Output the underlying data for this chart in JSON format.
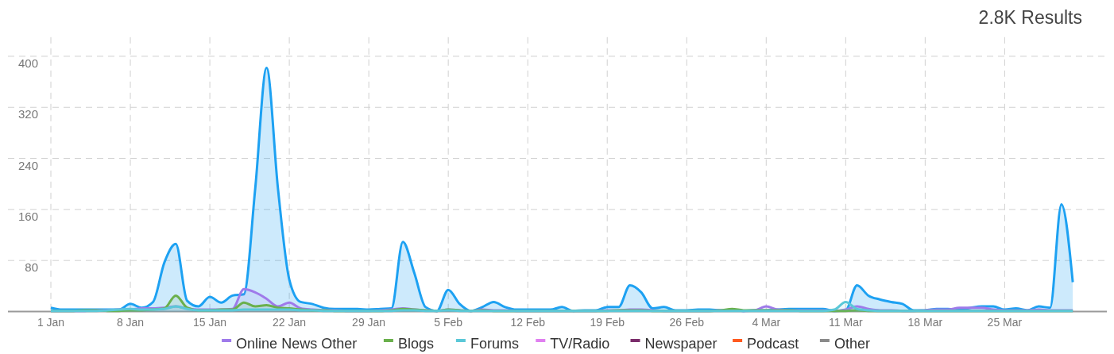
{
  "chart_data": {
    "type": "area",
    "title": "2.8K Results",
    "x": [
      "--01-01",
      "--01-02",
      "--01-03",
      "--01-04",
      "--01-05",
      "--01-06",
      "--01-07",
      "--01-08",
      "--01-09",
      "--01-10",
      "--01-11",
      "--01-12",
      "--01-13",
      "--01-14",
      "--01-15",
      "--01-16",
      "--01-17",
      "--01-18",
      "--01-19",
      "--01-20",
      "--01-21",
      "--01-22",
      "--01-23",
      "--01-24",
      "--01-25",
      "--01-26",
      "--01-27",
      "--01-28",
      "--01-29",
      "--01-30",
      "--01-31",
      "--02-01",
      "--02-02",
      "--02-03",
      "--02-04",
      "--02-05",
      "--02-06",
      "--02-07",
      "--02-08",
      "--02-09",
      "--02-10",
      "--02-11",
      "--02-12",
      "--02-13",
      "--02-14",
      "--02-15",
      "--02-16",
      "--02-17",
      "--02-18",
      "--02-19",
      "--02-20",
      "--02-21",
      "--02-22",
      "--02-23",
      "--02-24",
      "--02-25",
      "--02-26",
      "--02-27",
      "--02-28",
      "--02-29",
      "--03-01",
      "--03-02",
      "--03-03",
      "--03-04",
      "--03-05",
      "--03-06",
      "--03-07",
      "--03-08",
      "--03-09",
      "--03-10",
      "--03-11",
      "--03-12",
      "--03-13",
      "--03-14",
      "--03-15",
      "--03-16",
      "--03-17",
      "--03-18",
      "--03-19",
      "--03-20",
      "--03-21",
      "--03-22",
      "--03-23",
      "--03-24",
      "--03-25",
      "--03-26",
      "--03-27",
      "--03-28",
      "--03-29",
      "--03-30",
      "--03-31"
    ],
    "series": [
      {
        "color": "#1da1f2",
        "values": [
          6,
          3,
          3,
          3,
          3,
          3,
          3,
          12,
          6,
          15,
          77,
          106,
          17,
          8,
          23,
          14,
          25,
          27,
          193,
          382,
          193,
          50,
          15,
          12,
          6,
          4,
          4,
          4,
          3,
          4,
          5,
          109,
          61,
          7,
          1,
          34,
          12,
          1,
          7,
          15,
          7,
          3,
          3,
          3,
          3,
          7,
          1,
          2,
          2,
          7,
          7,
          41,
          30,
          5,
          7,
          2,
          2,
          3,
          3,
          2,
          2,
          1,
          2,
          2,
          3,
          4,
          4,
          4,
          4,
          1,
          2,
          41,
          25,
          19,
          15,
          12,
          2,
          2,
          4,
          4,
          3,
          6,
          8,
          8,
          3,
          5,
          2,
          8,
          6,
          168,
          46
        ]
      },
      {
        "name": "Online News Other",
        "color": "#9f7aea",
        "values": [
          1,
          1,
          1,
          1,
          2,
          2,
          3,
          3,
          5,
          5,
          6,
          8,
          5,
          3,
          3,
          3,
          4,
          35,
          30,
          20,
          8,
          14,
          5,
          3,
          2,
          2,
          1,
          1,
          1,
          2,
          3,
          5,
          3,
          2,
          1,
          3,
          2,
          1,
          3,
          2,
          2,
          1,
          1,
          1,
          1,
          1,
          1,
          1,
          1,
          2,
          2,
          3,
          3,
          2,
          1,
          1,
          1,
          1,
          1,
          2,
          2,
          1,
          2,
          8,
          3,
          2,
          2,
          2,
          2,
          1,
          3,
          8,
          4,
          2,
          2,
          1,
          1,
          2,
          3,
          3,
          6,
          6,
          6,
          3,
          2,
          2,
          2,
          3,
          2,
          2,
          2
        ]
      },
      {
        "name": "Blogs",
        "color": "#6ab04c",
        "values": [
          1,
          1,
          1,
          2,
          2,
          1,
          1,
          2,
          2,
          3,
          5,
          25,
          6,
          2,
          2,
          3,
          3,
          14,
          8,
          10,
          6,
          5,
          3,
          2,
          2,
          1,
          1,
          1,
          1,
          1,
          2,
          4,
          3,
          2,
          1,
          3,
          2,
          1,
          2,
          1,
          1,
          1,
          1,
          1,
          1,
          1,
          1,
          1,
          1,
          1,
          2,
          2,
          2,
          1,
          1,
          1,
          1,
          1,
          1,
          2,
          4,
          2,
          2,
          2,
          2,
          2,
          1,
          1,
          1,
          1,
          1,
          2,
          1,
          1,
          1,
          1,
          1,
          1,
          1,
          1,
          1,
          1,
          1,
          1,
          1,
          1,
          1,
          1,
          1,
          1,
          1
        ]
      },
      {
        "name": "Forums",
        "color": "#5bc8d8",
        "values": [
          1,
          1,
          1,
          1,
          1,
          2,
          3,
          4,
          3,
          3,
          4,
          8,
          4,
          2,
          2,
          2,
          2,
          3,
          3,
          3,
          3,
          3,
          2,
          2,
          1,
          1,
          1,
          1,
          1,
          1,
          1,
          2,
          2,
          1,
          1,
          2,
          1,
          1,
          1,
          1,
          1,
          1,
          1,
          1,
          1,
          1,
          1,
          1,
          1,
          1,
          1,
          1,
          1,
          1,
          1,
          1,
          1,
          1,
          1,
          1,
          1,
          1,
          1,
          1,
          1,
          1,
          1,
          1,
          1,
          3,
          15,
          4,
          2,
          1,
          1,
          1,
          1,
          1,
          1,
          1,
          1,
          1,
          1,
          1,
          1,
          1,
          1,
          1,
          1,
          1,
          1
        ]
      },
      {
        "color": "#3b5998",
        "values": [
          null,
          null,
          null,
          null,
          null,
          null,
          null,
          null,
          null,
          null,
          null,
          null,
          null,
          null,
          null,
          null,
          null,
          null,
          null,
          null,
          null,
          null,
          null,
          null,
          null,
          null,
          null,
          null,
          null,
          null,
          null,
          null,
          null,
          null,
          null,
          null,
          null,
          null,
          null,
          null,
          null,
          null,
          null,
          null,
          null,
          null,
          null,
          null,
          null,
          null,
          null,
          null,
          null,
          null,
          null,
          null,
          null,
          null,
          null,
          null,
          null,
          null,
          null,
          null,
          null,
          null,
          null,
          null,
          null,
          null,
          null,
          null,
          null,
          null,
          null,
          null,
          null,
          null,
          null,
          null,
          null,
          null,
          null,
          null,
          null,
          null,
          null,
          null,
          null,
          null,
          null
        ]
      },
      {
        "color": "#ff0000",
        "values": [
          null,
          null,
          null,
          null,
          null,
          null,
          null,
          null,
          null,
          null,
          null,
          null,
          null,
          null,
          null,
          null,
          null,
          null,
          null,
          null,
          null,
          null,
          null,
          null,
          null,
          null,
          null,
          null,
          null,
          null,
          null,
          null,
          null,
          null,
          null,
          null,
          null,
          null,
          null,
          null,
          null,
          null,
          null,
          null,
          null,
          null,
          null,
          null,
          null,
          null,
          null,
          null,
          null,
          null,
          null,
          null,
          null,
          null,
          null,
          null,
          null,
          null,
          null,
          null,
          null,
          null,
          null,
          null,
          null,
          null,
          null,
          null,
          null,
          null,
          null,
          null,
          null,
          null,
          null,
          null,
          null,
          null,
          null,
          null,
          null,
          null,
          null,
          null,
          null,
          null,
          null
        ]
      },
      {
        "name": "TV/Radio",
        "color": "#e080f0",
        "values": [
          null,
          null,
          null,
          null,
          null,
          null,
          null,
          null,
          null,
          null,
          null,
          null,
          null,
          null,
          null,
          null,
          null,
          null,
          null,
          null,
          null,
          null,
          null,
          null,
          null,
          null,
          null,
          null,
          null,
          null,
          null,
          null,
          null,
          null,
          null,
          null,
          null,
          null,
          null,
          null,
          null,
          null,
          null,
          null,
          null,
          null,
          null,
          null,
          null,
          null,
          null,
          null,
          null,
          null,
          null,
          null,
          null,
          null,
          null,
          null,
          null,
          null,
          null,
          null,
          null,
          null,
          null,
          null,
          null,
          null,
          null,
          null,
          null,
          null,
          null,
          null,
          null,
          null,
          null,
          null,
          null,
          null,
          null,
          null,
          null,
          null,
          null,
          null,
          null,
          null,
          null
        ]
      },
      {
        "name": "Newspaper",
        "color": "#7b2d6b",
        "values": [
          null,
          null,
          null,
          null,
          null,
          null,
          null,
          null,
          null,
          null,
          null,
          null,
          null,
          null,
          null,
          null,
          null,
          null,
          null,
          null,
          null,
          null,
          null,
          null,
          null,
          null,
          null,
          null,
          null,
          null,
          null,
          null,
          null,
          null,
          null,
          null,
          null,
          null,
          null,
          null,
          null,
          null,
          null,
          null,
          null,
          null,
          null,
          null,
          null,
          null,
          null,
          null,
          null,
          null,
          null,
          null,
          null,
          null,
          null,
          null,
          null,
          null,
          null,
          null,
          null,
          null,
          null,
          null,
          null,
          null,
          null,
          null,
          null,
          null,
          null,
          null,
          null,
          null,
          null,
          null,
          null,
          null,
          null,
          null,
          null,
          null,
          null,
          null,
          null,
          null,
          null
        ]
      },
      {
        "name": "Podcast",
        "color": "#ff5a1f",
        "values": [
          null,
          null,
          null,
          null,
          null,
          null,
          null,
          null,
          null,
          null,
          null,
          null,
          null,
          null,
          null,
          null,
          null,
          null,
          null,
          null,
          null,
          null,
          null,
          null,
          null,
          null,
          null,
          null,
          null,
          null,
          null,
          null,
          null,
          null,
          null,
          null,
          null,
          null,
          null,
          null,
          null,
          null,
          null,
          null,
          null,
          null,
          null,
          null,
          null,
          null,
          null,
          null,
          null,
          null,
          null,
          null,
          null,
          null,
          null,
          null,
          null,
          null,
          null,
          null,
          null,
          null,
          null,
          null,
          null,
          null,
          null,
          null,
          null,
          null,
          null,
          null,
          null,
          null,
          null,
          null,
          null,
          null,
          null,
          null,
          null,
          null,
          null,
          null,
          null,
          null,
          null
        ]
      },
      {
        "name": "Other",
        "color": "#8a8a8a",
        "values": [
          null,
          null,
          null,
          null,
          null,
          null,
          null,
          null,
          null,
          null,
          null,
          null,
          null,
          null,
          null,
          null,
          null,
          null,
          null,
          null,
          null,
          null,
          null,
          null,
          null,
          null,
          null,
          null,
          null,
          null,
          null,
          null,
          null,
          null,
          null,
          null,
          null,
          null,
          null,
          null,
          null,
          null,
          null,
          null,
          null,
          null,
          null,
          null,
          null,
          null,
          null,
          null,
          null,
          null,
          null,
          null,
          null,
          null,
          null,
          null,
          null,
          null,
          null,
          null,
          null,
          null,
          null,
          null,
          null,
          null,
          null,
          null,
          null,
          null,
          null,
          null,
          null,
          null,
          null,
          null,
          null,
          null,
          null,
          null,
          null,
          null,
          null,
          null,
          null,
          null,
          null
        ]
      }
    ],
    "xlim": [
      "--01-01",
      "--04-03"
    ],
    "xticks": [
      {
        "value": "--01-01",
        "label": "1 Jan"
      },
      {
        "value": "--01-08",
        "label": "8 Jan"
      },
      {
        "value": "--01-15",
        "label": "15 Jan"
      },
      {
        "value": "--01-22",
        "label": "22 Jan"
      },
      {
        "value": "--01-29",
        "label": "29 Jan"
      },
      {
        "value": "--02-05",
        "label": "5 Feb"
      },
      {
        "value": "--02-12",
        "label": "12 Feb"
      },
      {
        "value": "--02-19",
        "label": "19 Feb"
      },
      {
        "value": "--02-26",
        "label": "26 Feb"
      },
      {
        "value": "--03-04",
        "label": "4 Mar"
      },
      {
        "value": "--03-11",
        "label": "11 Mar"
      },
      {
        "value": "--03-18",
        "label": "18 Mar"
      },
      {
        "value": "--03-25",
        "label": "25 Mar"
      }
    ],
    "ylim": [
      0,
      430
    ],
    "yticks": [
      80,
      160,
      240,
      320,
      400
    ],
    "grid": true,
    "legend": "bottom",
    "marker": "none",
    "line_style": "solid"
  }
}
